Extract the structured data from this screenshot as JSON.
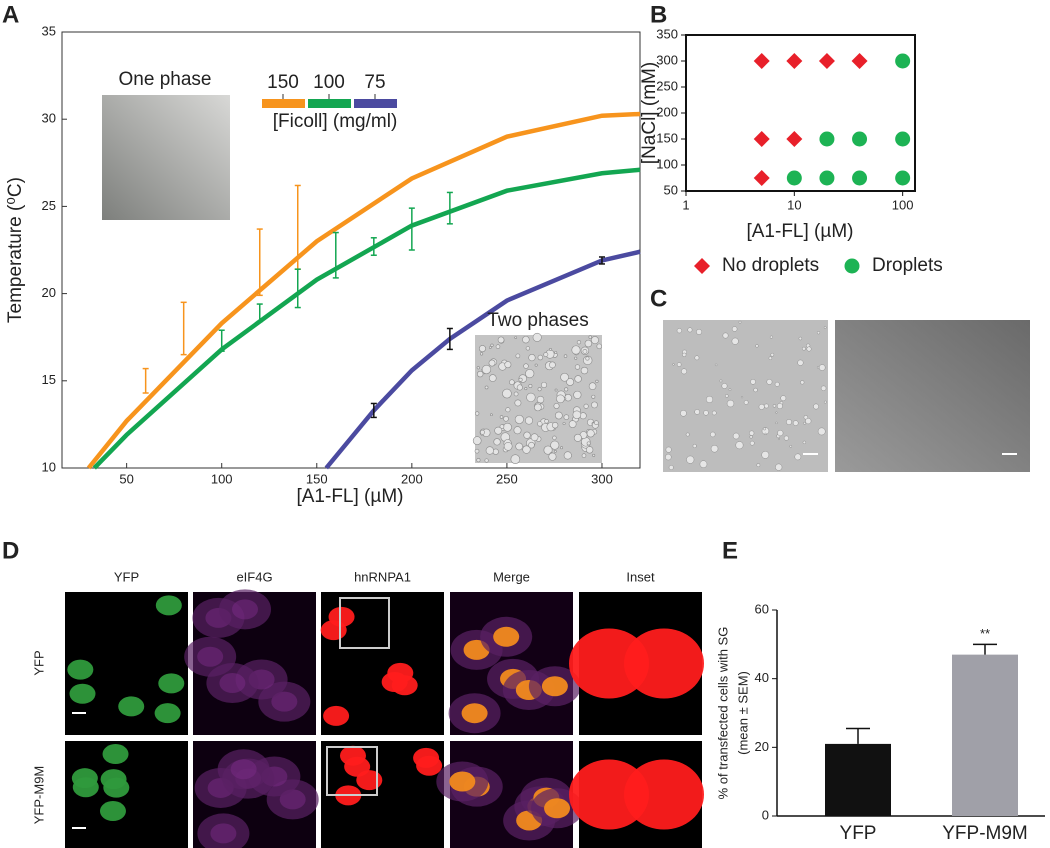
{
  "panel_labels": [
    "A",
    "B",
    "C",
    "D",
    "E"
  ],
  "chart_data": [
    {
      "type": "line",
      "x_label": "[A1-FL] (µM)",
      "y_label": "Temperature (⁰C)",
      "legend_title": "[Ficoll] (mg/ml)",
      "annotations": [
        "One phase",
        "Two phases"
      ],
      "xlim": [
        16,
        320
      ],
      "ylim": [
        10,
        35
      ],
      "xticks": [
        50,
        100,
        150,
        200,
        250,
        300
      ],
      "yticks": [
        10,
        15,
        20,
        25,
        30,
        35
      ],
      "series": [
        {
          "name": "150",
          "color": "#f7941d",
          "x": [
            30,
            50,
            100,
            150,
            200,
            250,
            300,
            320
          ],
          "values": [
            10,
            12.7,
            18.3,
            23,
            26.6,
            29,
            30.2,
            30.3
          ]
        },
        {
          "name": "100",
          "color": "#13a651",
          "x": [
            33,
            50,
            100,
            150,
            200,
            250,
            300,
            320
          ],
          "values": [
            10,
            11.9,
            16.8,
            20.8,
            23.9,
            25.9,
            26.9,
            27.1
          ]
        },
        {
          "name": "75",
          "color": "#4b4aa0",
          "x": [
            155,
            180,
            200,
            220,
            250,
            300,
            320
          ],
          "values": [
            10,
            13.3,
            15.6,
            17.4,
            19.6,
            21.9,
            22.4
          ]
        }
      ],
      "error_bars": [
        {
          "color": "#f7941d",
          "x": [
            60,
            80,
            120,
            140
          ],
          "values": [
            15,
            18,
            21.8,
            23.8
          ],
          "errors": [
            0.7,
            1.5,
            1.9,
            2.4
          ]
        },
        {
          "color": "#13a651",
          "x": [
            100,
            120,
            140,
            160,
            180,
            200,
            220
          ],
          "values": [
            17.3,
            18.9,
            20.3,
            22.2,
            22.7,
            23.7,
            24.9
          ],
          "errors": [
            0.6,
            0.5,
            1.1,
            1.3,
            0.5,
            1.2,
            0.9
          ]
        },
        {
          "color": "#111111",
          "x": [
            180,
            220,
            300
          ],
          "values": [
            13.3,
            17.4,
            21.9
          ],
          "errors": [
            0.4,
            0.6,
            0.2
          ]
        }
      ]
    },
    {
      "type": "scatter",
      "x_label": "[A1-FL] (µM)",
      "y_label": "[NaCl] (mM)",
      "log_x": true,
      "xlim": [
        1,
        130
      ],
      "ylim": [
        50,
        350
      ],
      "xticks": [
        1,
        10,
        100
      ],
      "yticks": [
        50,
        100,
        150,
        200,
        250,
        300,
        350
      ],
      "series": [
        {
          "name": "No droplets",
          "color": "#e8202a",
          "marker": "diamond",
          "x": [
            5,
            10,
            20,
            40,
            5,
            10,
            5
          ],
          "values": [
            300,
            300,
            300,
            300,
            150,
            150,
            75
          ]
        },
        {
          "name": "Droplets",
          "color": "#1db354",
          "marker": "circle",
          "x": [
            100,
            20,
            40,
            100,
            10,
            20,
            40,
            100
          ],
          "values": [
            300,
            150,
            150,
            150,
            75,
            75,
            75,
            75
          ]
        }
      ]
    },
    {
      "type": "bar",
      "y_label": [
        "% of transfected cells with SG",
        "(mean ± SEM)"
      ],
      "annotations": [
        "**"
      ],
      "categories": [
        "YFP",
        "YFP-M9M"
      ],
      "values": [
        21,
        47
      ],
      "errors": [
        4.5,
        3
      ],
      "colors": [
        "#111111",
        "#a0a0a8"
      ],
      "ylim": [
        0,
        60
      ],
      "yticks": [
        0,
        20,
        40,
        60
      ]
    }
  ],
  "panel_d": {
    "columns": [
      "YFP",
      "eIF4G",
      "hnRNPA1",
      "Merge",
      "Inset"
    ],
    "rows": [
      "YFP",
      "YFP-M9M"
    ]
  }
}
